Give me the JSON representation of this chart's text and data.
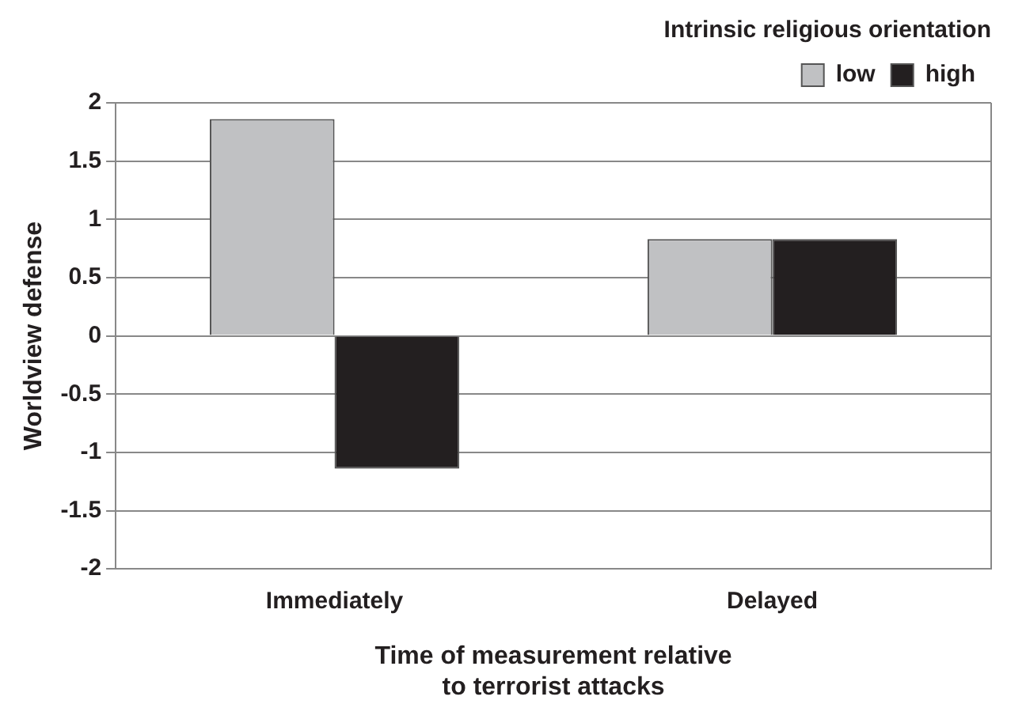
{
  "chart_data": {
    "type": "bar",
    "categories": [
      "Immediately",
      "Delayed"
    ],
    "series": [
      {
        "name": "low",
        "color": "#c0c1c3",
        "values": [
          1.86,
          0.83
        ]
      },
      {
        "name": "high",
        "color": "#231f20",
        "values": [
          -1.14,
          0.83
        ]
      }
    ],
    "ylim": [
      -2,
      2
    ],
    "yticks": [
      -2,
      -1.5,
      -1,
      -0.5,
      0,
      0.5,
      1,
      1.5,
      2
    ],
    "ylabel": "Worldview defense",
    "xlabel": "Time of measurement relative\nto terrorist attacks",
    "legend_title": "Intrinsic religious orientation",
    "legend": "top right",
    "grid": "y"
  }
}
